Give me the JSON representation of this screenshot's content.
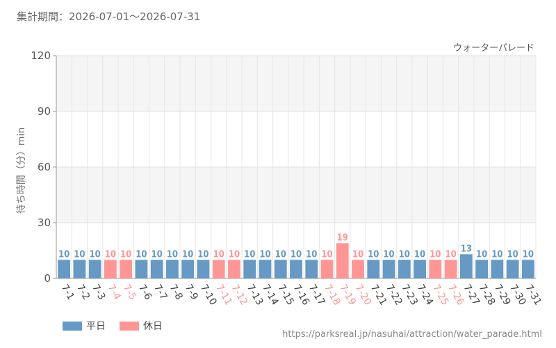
{
  "header": {
    "period_label": "集計期間：2026-07-01～2026-07-31"
  },
  "footer": {
    "source_url": "https://parksreal.jp/nasuhai/attraction/water_parade.html"
  },
  "legend": [
    {
      "label": "平日",
      "color": "#6699c4"
    },
    {
      "label": "休日",
      "color": "#ff9696"
    }
  ],
  "chart_data": {
    "type": "bar",
    "title": "ウォーターパレード",
    "ylabel": "待ち時間（分）min",
    "xlabel": "",
    "ylim": [
      0,
      120
    ],
    "yticks": [
      0,
      30,
      60,
      90,
      120
    ],
    "grid": true,
    "legend_position": "bottom-left",
    "colors": {
      "weekday": "#6699c4",
      "holiday": "#ff9696"
    },
    "categories": [
      "7-1",
      "7-2",
      "7-3",
      "7-4",
      "7-5",
      "7-6",
      "7-7",
      "7-8",
      "7-9",
      "7-10",
      "7-11",
      "7-12",
      "7-13",
      "7-14",
      "7-15",
      "7-16",
      "7-17",
      "7-18",
      "7-19",
      "7-20",
      "7-21",
      "7-22",
      "7-23",
      "7-24",
      "7-25",
      "7-26",
      "7-27",
      "7-28",
      "7-29",
      "7-30",
      "7-31"
    ],
    "values": [
      10,
      10,
      10,
      10,
      10,
      10,
      10,
      10,
      10,
      10,
      10,
      10,
      10,
      10,
      10,
      10,
      10,
      10,
      19,
      10,
      10,
      10,
      10,
      10,
      10,
      10,
      13,
      10,
      10,
      10,
      10
    ],
    "holiday_flags": [
      false,
      false,
      false,
      true,
      true,
      false,
      false,
      false,
      false,
      false,
      true,
      true,
      false,
      false,
      false,
      false,
      false,
      true,
      true,
      true,
      false,
      false,
      false,
      false,
      true,
      true,
      false,
      false,
      false,
      false,
      false
    ]
  }
}
